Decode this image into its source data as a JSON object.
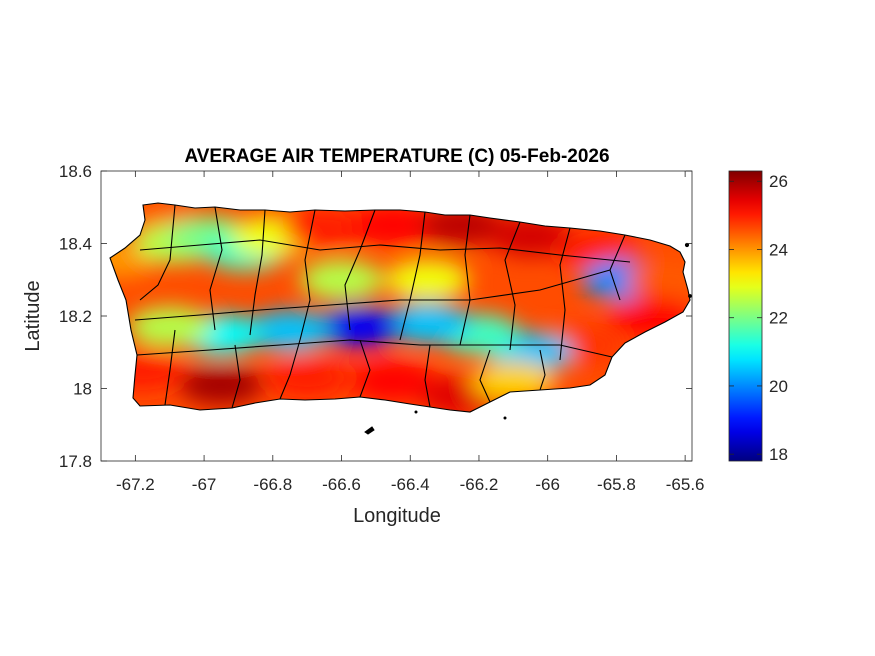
{
  "chart_data": {
    "type": "heatmap",
    "title": "AVERAGE AIR TEMPERATURE (C) 05-Feb-2026",
    "xlabel": "Longitude",
    "ylabel": "Latitude",
    "xlim": [
      -67.3,
      -65.58
    ],
    "ylim": [
      17.8,
      18.6
    ],
    "xticks": [
      -67.2,
      -67,
      -66.8,
      -66.6,
      -66.4,
      -66.2,
      -66,
      -65.8,
      -65.6
    ],
    "xtick_labels": [
      "-67.2",
      "-67",
      "-66.8",
      "-66.6",
      "-66.4",
      "-66.2",
      "-66",
      "-65.8",
      "-65.6"
    ],
    "yticks": [
      17.8,
      18,
      18.2,
      18.4,
      18.6
    ],
    "ytick_labels": [
      "17.8",
      "18",
      "18.2",
      "18.4",
      "18.6"
    ],
    "colorbar": {
      "colormap": "jet",
      "range": [
        17.8,
        26.3
      ],
      "ticks": [
        18,
        20,
        22,
        24,
        26
      ],
      "tick_labels": [
        "18",
        "20",
        "22",
        "24",
        "26"
      ]
    },
    "grid": false,
    "box": true,
    "temperature_field": [
      {
        "lon": -67.25,
        "lat": 18.36,
        "value": 24.0
      },
      {
        "lon": -67.15,
        "lat": 18.47,
        "value": 24.5
      },
      {
        "lon": -67.08,
        "lat": 18.4,
        "value": 22.5
      },
      {
        "lon": -66.98,
        "lat": 18.42,
        "value": 22.0
      },
      {
        "lon": -66.88,
        "lat": 18.38,
        "value": 21.5
      },
      {
        "lon": -66.8,
        "lat": 18.42,
        "value": 23.0
      },
      {
        "lon": -66.65,
        "lat": 18.44,
        "value": 25.0
      },
      {
        "lon": -66.45,
        "lat": 18.45,
        "value": 25.2
      },
      {
        "lon": -66.25,
        "lat": 18.45,
        "value": 25.8
      },
      {
        "lon": -66.05,
        "lat": 18.42,
        "value": 25.6
      },
      {
        "lon": -65.85,
        "lat": 18.38,
        "value": 25.0
      },
      {
        "lon": -65.78,
        "lat": 18.3,
        "value": 20.0
      },
      {
        "lon": -65.65,
        "lat": 18.3,
        "value": 24.5
      },
      {
        "lon": -65.7,
        "lat": 18.2,
        "value": 25.2
      },
      {
        "lon": -65.9,
        "lat": 18.12,
        "value": 24.8
      },
      {
        "lon": -66.05,
        "lat": 18.1,
        "value": 20.5
      },
      {
        "lon": -66.2,
        "lat": 18.15,
        "value": 21.5
      },
      {
        "lon": -66.35,
        "lat": 18.18,
        "value": 20.5
      },
      {
        "lon": -66.55,
        "lat": 18.17,
        "value": 18.8
      },
      {
        "lon": -66.75,
        "lat": 18.16,
        "value": 20.5
      },
      {
        "lon": -66.95,
        "lat": 18.15,
        "value": 21.0
      },
      {
        "lon": -67.1,
        "lat": 18.17,
        "value": 22.5
      },
      {
        "lon": -67.18,
        "lat": 18.05,
        "value": 25.0
      },
      {
        "lon": -66.95,
        "lat": 18.01,
        "value": 26.0
      },
      {
        "lon": -66.7,
        "lat": 18.03,
        "value": 25.0
      },
      {
        "lon": -66.45,
        "lat": 18.02,
        "value": 25.2
      },
      {
        "lon": -66.25,
        "lat": 17.98,
        "value": 25.5
      },
      {
        "lon": -66.1,
        "lat": 18.02,
        "value": 23.5
      },
      {
        "lon": -66.35,
        "lat": 18.3,
        "value": 23.0
      },
      {
        "lon": -66.6,
        "lat": 18.3,
        "value": 22.5
      }
    ]
  }
}
